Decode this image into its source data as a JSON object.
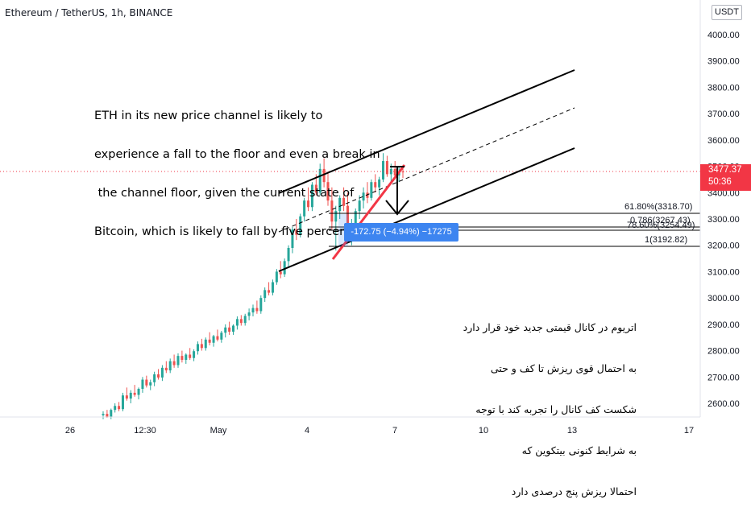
{
  "header": {
    "symbol_title": "Ethereum / TetherUS, 1h, BINANCE",
    "currency_button": "USDT"
  },
  "price_tag": {
    "price": "3477.37",
    "countdown": "50:36",
    "color": "#f23645"
  },
  "measure_tool": {
    "label": "-172.75 (−4.94%) −17275",
    "color": "#3d85f0"
  },
  "fib_levels": [
    {
      "label": "61.80%(3318.70)",
      "price": 3318.7
    },
    {
      "label": "0.786(3267.43)",
      "price": 3267.43
    },
    {
      "label": "78.60%(3254.49)",
      "price": 3254.49
    },
    {
      "label": "1(3192.82)",
      "price": 3192.82
    }
  ],
  "annotations": {
    "english": [
      "ETH in its new price channel is likely to",
      "experience a fall to the floor and even a break in",
      " the channel floor, given the current state of",
      "Bitcoin, which is likely to fall by five percent."
    ],
    "persian": [
      "اتریوم در کانال قیمتی جدید خود قرار دارد",
      "به احتمال قوی ریزش تا کف و حتی",
      "شکست کف کانال را تجربه کند با توجه",
      "به شرایط کنونی بیتکوین که",
      "احتمالا ریزش پنج درصدی دارد"
    ]
  },
  "chart_data": {
    "type": "candlestick",
    "title": "Ethereum / TetherUS, 1h, BINANCE",
    "y_axis": {
      "unit": "USDT",
      "ticks": [
        2600,
        2700,
        2800,
        2900,
        3000,
        3100,
        3200,
        3300,
        3400,
        3500,
        3600,
        3700,
        3800,
        3900,
        4000
      ],
      "tick_labels": [
        "2600.00",
        "2700.00",
        "2800.00",
        "2900.00",
        "3000.00",
        "3100.00",
        "3200.00",
        "3300.00",
        "3400.00",
        "3500.00",
        "3600.00",
        "3700.00",
        "3800.00",
        "3900.00",
        "4000.00"
      ],
      "range": [
        2545,
        4110
      ]
    },
    "x_axis": {
      "tick_labels": [
        "26",
        "12:30",
        "May",
        "4",
        "7",
        "10",
        "13",
        "17"
      ]
    },
    "last_price": 3477.37,
    "channel": {
      "upper": [
        [
          346,
          3395
        ],
        [
          712,
          3865
        ]
      ],
      "middle": [
        [
          346,
          3150
        ],
        [
          712,
          3720
        ]
      ],
      "lower": [
        [
          346,
          3100
        ],
        [
          712,
          3570
        ]
      ]
    },
    "candles": [
      [
        2555,
        2570,
        2540,
        2560
      ],
      [
        2560,
        2575,
        2545,
        2548
      ],
      [
        2548,
        2580,
        2540,
        2575
      ],
      [
        2575,
        2600,
        2565,
        2590
      ],
      [
        2590,
        2605,
        2570,
        2578
      ],
      [
        2578,
        2640,
        2570,
        2630
      ],
      [
        2630,
        2660,
        2610,
        2618
      ],
      [
        2618,
        2650,
        2600,
        2640
      ],
      [
        2640,
        2670,
        2625,
        2632
      ],
      [
        2632,
        2660,
        2615,
        2655
      ],
      [
        2655,
        2700,
        2640,
        2690
      ],
      [
        2690,
        2705,
        2660,
        2668
      ],
      [
        2668,
        2690,
        2650,
        2680
      ],
      [
        2680,
        2720,
        2665,
        2710
      ],
      [
        2710,
        2730,
        2690,
        2698
      ],
      [
        2698,
        2745,
        2685,
        2735
      ],
      [
        2735,
        2760,
        2715,
        2725
      ],
      [
        2725,
        2770,
        2715,
        2760
      ],
      [
        2760,
        2785,
        2735,
        2745
      ],
      [
        2745,
        2790,
        2735,
        2780
      ],
      [
        2780,
        2800,
        2755,
        2765
      ],
      [
        2765,
        2790,
        2750,
        2785
      ],
      [
        2785,
        2810,
        2765,
        2772
      ],
      [
        2772,
        2805,
        2760,
        2798
      ],
      [
        2798,
        2835,
        2785,
        2825
      ],
      [
        2825,
        2845,
        2800,
        2810
      ],
      [
        2810,
        2850,
        2800,
        2842
      ],
      [
        2842,
        2870,
        2820,
        2830
      ],
      [
        2830,
        2860,
        2815,
        2855
      ],
      [
        2855,
        2880,
        2835,
        2842
      ],
      [
        2842,
        2875,
        2830,
        2868
      ],
      [
        2868,
        2900,
        2850,
        2888
      ],
      [
        2888,
        2910,
        2860,
        2872
      ],
      [
        2872,
        2900,
        2860,
        2895
      ],
      [
        2895,
        2930,
        2880,
        2920
      ],
      [
        2920,
        2935,
        2895,
        2905
      ],
      [
        2905,
        2940,
        2895,
        2932
      ],
      [
        2932,
        2960,
        2915,
        2945
      ],
      [
        2945,
        2975,
        2930,
        2962
      ],
      [
        2962,
        2990,
        2940,
        2950
      ],
      [
        2950,
        3010,
        2940,
        3000
      ],
      [
        3000,
        3040,
        2985,
        3030
      ],
      [
        3030,
        3060,
        3010,
        3020
      ],
      [
        3020,
        3070,
        3010,
        3060
      ],
      [
        3060,
        3110,
        3050,
        3100
      ],
      [
        3100,
        3140,
        3075,
        3090
      ],
      [
        3090,
        3150,
        3080,
        3140
      ],
      [
        3140,
        3200,
        3120,
        3190
      ],
      [
        3190,
        3270,
        3170,
        3260
      ],
      [
        3260,
        3300,
        3220,
        3240
      ],
      [
        3240,
        3320,
        3230,
        3310
      ],
      [
        3310,
        3380,
        3290,
        3370
      ],
      [
        3370,
        3420,
        3330,
        3345
      ],
      [
        3345,
        3440,
        3330,
        3430
      ],
      [
        3430,
        3470,
        3390,
        3400
      ],
      [
        3400,
        3510,
        3390,
        3490
      ],
      [
        3490,
        3530,
        3420,
        3440
      ],
      [
        3440,
        3480,
        3350,
        3370
      ],
      [
        3370,
        3420,
        3260,
        3290
      ],
      [
        3290,
        3350,
        3180,
        3330
      ],
      [
        3330,
        3390,
        3300,
        3380
      ],
      [
        3380,
        3420,
        3330,
        3350
      ],
      [
        3350,
        3400,
        3220,
        3240
      ],
      [
        3240,
        3300,
        3200,
        3280
      ],
      [
        3280,
        3340,
        3260,
        3330
      ],
      [
        3330,
        3390,
        3300,
        3370
      ],
      [
        3370,
        3420,
        3340,
        3400
      ],
      [
        3400,
        3440,
        3360,
        3380
      ],
      [
        3380,
        3450,
        3370,
        3440
      ],
      [
        3440,
        3470,
        3400,
        3420
      ],
      [
        3420,
        3460,
        3390,
        3450
      ],
      [
        3450,
        3550,
        3440,
        3520
      ],
      [
        3520,
        3540,
        3460,
        3470
      ],
      [
        3470,
        3510,
        3440,
        3490
      ],
      [
        3490,
        3520,
        3450,
        3465
      ],
      [
        3465,
        3500,
        3440,
        3480
      ],
      [
        3480,
        3505,
        3455,
        3477
      ]
    ]
  }
}
